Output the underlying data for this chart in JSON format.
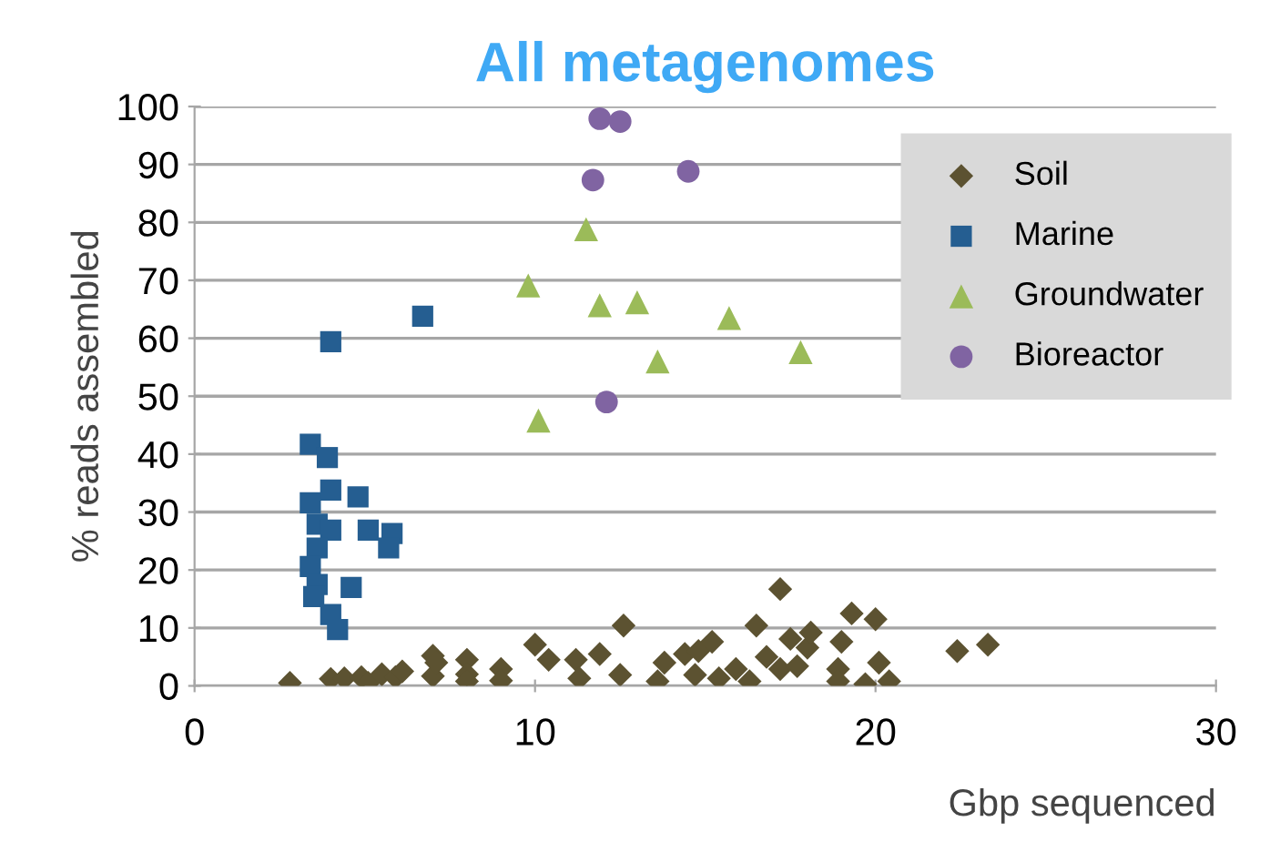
{
  "chart_data": {
    "type": "scatter",
    "title": "All metagenomes",
    "xlabel": "Gbp sequenced",
    "ylabel": "% reads assembled",
    "xlim": [
      0,
      30
    ],
    "xticks": [
      0,
      10,
      20,
      30
    ],
    "ylim": [
      0,
      100
    ],
    "yticks": [
      0,
      10,
      20,
      30,
      40,
      50,
      60,
      70,
      80,
      90,
      100
    ],
    "grid": "y",
    "legend": "top right",
    "series": [
      {
        "name": "Soil",
        "color": "#5c5231",
        "marker": "diamond",
        "x": [
          2.8,
          4.0,
          4.4,
          4.9,
          5.1,
          5.5,
          5.9,
          6.1,
          7.0,
          7.0,
          7.1,
          8.0,
          8.0,
          8.0,
          9.0,
          9.0,
          10.0,
          10.4,
          11.2,
          11.3,
          11.9,
          12.5,
          12.6,
          13.6,
          13.8,
          14.4,
          14.7,
          14.8,
          15.2,
          15.4,
          15.9,
          16.3,
          16.5,
          16.8,
          17.2,
          17.2,
          17.5,
          17.7,
          18.0,
          18.1,
          18.9,
          18.9,
          19.0,
          19.3,
          19.7,
          20.0,
          20.1,
          20.4,
          22.4,
          23.3
        ],
        "values": [
          0.5,
          1.2,
          1.3,
          1.5,
          0.5,
          2.0,
          1.5,
          2.5,
          5.2,
          1.7,
          4.0,
          4.5,
          2.0,
          0.8,
          2.9,
          0.9,
          7.1,
          4.5,
          4.5,
          1.3,
          5.5,
          1.9,
          10.4,
          0.8,
          4.0,
          5.5,
          1.9,
          6.0,
          7.6,
          1.3,
          2.9,
          0.8,
          10.4,
          5.0,
          16.7,
          2.9,
          8.1,
          3.4,
          6.6,
          9.2,
          2.9,
          0.8,
          7.6,
          12.5,
          0.3,
          11.5,
          4.0,
          0.8,
          6.0,
          7.1
        ]
      },
      {
        "name": "Marine",
        "color": "#255e91",
        "marker": "square",
        "x": [
          3.4,
          3.9,
          4.0,
          6.7,
          4.0,
          4.8,
          3.4,
          3.6,
          4.0,
          5.1,
          5.8,
          5.7,
          3.6,
          3.4,
          3.6,
          4.6,
          3.5,
          4.0,
          4.2
        ],
        "values": [
          41.7,
          39.4,
          59.4,
          63.8,
          33.8,
          32.6,
          31.6,
          27.9,
          26.9,
          26.9,
          26.3,
          23.8,
          23.8,
          20.6,
          17.5,
          17.0,
          15.4,
          12.3,
          9.7
        ]
      },
      {
        "name": "Groundwater",
        "color": "#9bbb59",
        "marker": "triangle",
        "x": [
          11.5,
          9.8,
          11.9,
          13.0,
          15.7,
          13.6,
          17.8,
          10.1
        ],
        "values": [
          78.8,
          69.1,
          65.7,
          66.2,
          63.5,
          56.0,
          57.6,
          45.8
        ]
      },
      {
        "name": "Bioreactor",
        "color": "#8064a2",
        "marker": "circle",
        "x": [
          11.9,
          12.5,
          11.7,
          14.5,
          12.1
        ],
        "values": [
          97.9,
          97.4,
          87.3,
          88.8,
          49.0
        ]
      }
    ]
  }
}
